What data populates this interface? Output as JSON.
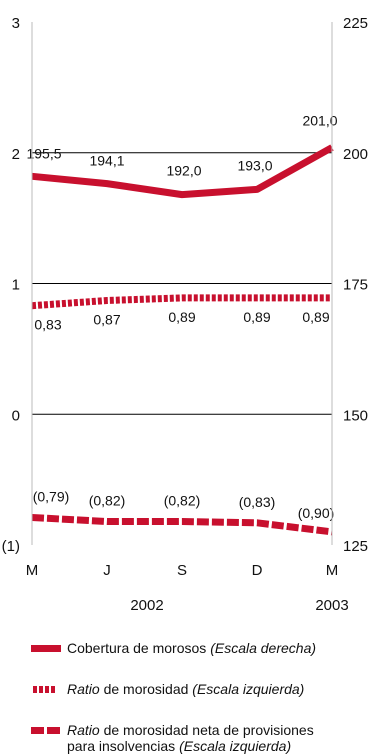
{
  "colors": {
    "series": "#c8102e",
    "grid": "#000000",
    "axis": "#bbbbbb"
  },
  "chart_data": {
    "type": "line",
    "categories": [
      "M",
      "J",
      "S",
      "D",
      "M"
    ],
    "year_labels": [
      "2002",
      "2003"
    ],
    "left_axis": {
      "ylim": [
        -1,
        3
      ],
      "ticks": [
        {
          "value": 3,
          "label": "3"
        },
        {
          "value": 2,
          "label": "2"
        },
        {
          "value": 1,
          "label": "1"
        },
        {
          "value": 0,
          "label": "0"
        },
        {
          "value": -1,
          "label": "(1)"
        }
      ]
    },
    "right_axis": {
      "ylim": [
        125,
        225
      ],
      "ticks": [
        {
          "value": 225,
          "label": "225"
        },
        {
          "value": 200,
          "label": "200"
        },
        {
          "value": 175,
          "label": "175"
        },
        {
          "value": 150,
          "label": "150"
        },
        {
          "value": 125,
          "label": "125"
        }
      ]
    },
    "grid": "horizontal",
    "series": [
      {
        "name": "Cobertura de morosos (Escala derecha)",
        "axis": "right",
        "style": "solid",
        "values": [
          195.5,
          194.1,
          192.0,
          193.0,
          201.0
        ],
        "labels": [
          "195,5",
          "194,1",
          "192,0",
          "193,0",
          "201,0"
        ]
      },
      {
        "name": "Ratio de morosidad (Escala izquierda)",
        "axis": "left",
        "style": "dotted",
        "values": [
          0.83,
          0.87,
          0.89,
          0.89,
          0.89
        ],
        "labels": [
          "0,83",
          "0,87",
          "0,89",
          "0,89",
          "0,89"
        ]
      },
      {
        "name": "Ratio de morosidad neta de provisiones para insolvencias (Escala izquierda)",
        "axis": "left",
        "style": "dashed",
        "values": [
          -0.79,
          -0.82,
          -0.82,
          -0.83,
          -0.9
        ],
        "labels": [
          "(0,79)",
          "(0,82)",
          "(0,82)",
          "(0,83)",
          "(0,90)"
        ]
      }
    ]
  },
  "legend": [
    {
      "plain": "Cobertura de morosos",
      "italic_before": "",
      "italic_after": "(Escala derecha)"
    },
    {
      "plain": "de morosidad",
      "italic_before": "Ratio",
      "italic_after": "(Escala izquierda)"
    },
    {
      "plain": "de morosidad neta de provisiones",
      "italic_before": "Ratio",
      "line2_plain": "para insolvencias",
      "italic_after": "(Escala izquierda)"
    }
  ]
}
